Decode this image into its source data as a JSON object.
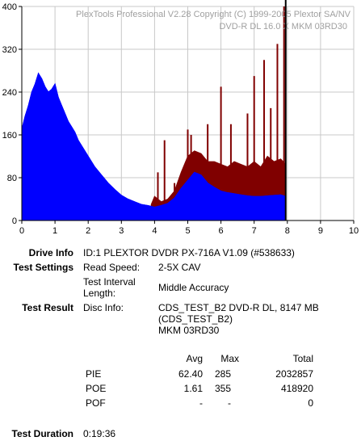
{
  "watermark": {
    "line1": "PlexTools Professional V2.28 Copyright (C) 1999-2005 Plextor SA/NV",
    "line2": "DVD-R DL   16.0 X   MKM 03RD30"
  },
  "chart_data": {
    "type": "area",
    "xlim": [
      0,
      10
    ],
    "ylim": [
      0,
      400
    ],
    "xticks": [
      "0",
      "1",
      "2",
      "3",
      "4",
      "5",
      "6",
      "7",
      "8",
      "9",
      "10"
    ],
    "yticks": [
      "0",
      "80",
      "160",
      "240",
      "320",
      "400"
    ],
    "grid": true,
    "series": [
      {
        "color": "#0000ff",
        "x": [
          0,
          0.1,
          0.2,
          0.3,
          0.4,
          0.5,
          0.6,
          0.7,
          0.8,
          0.9,
          1.0,
          1.1,
          1.2,
          1.3,
          1.4,
          1.5,
          1.6,
          1.7,
          1.8,
          1.9,
          2.0,
          2.2,
          2.4,
          2.6,
          2.8,
          3.0,
          3.2,
          3.4,
          3.6,
          3.8,
          4.0,
          4.2,
          4.4,
          4.6,
          4.8,
          5.0,
          5.2,
          5.4,
          5.6,
          5.8,
          6.0,
          6.2,
          6.4,
          6.6,
          6.8,
          7.0,
          7.2,
          7.4,
          7.6,
          7.8,
          7.95
        ],
        "y": [
          170,
          195,
          215,
          240,
          255,
          275,
          265,
          250,
          240,
          245,
          255,
          230,
          215,
          200,
          185,
          175,
          165,
          150,
          140,
          130,
          120,
          100,
          85,
          70,
          58,
          47,
          40,
          35,
          30,
          28,
          25,
          28,
          32,
          42,
          60,
          75,
          90,
          85,
          70,
          62,
          55,
          52,
          50,
          48,
          46,
          45,
          45,
          46,
          47,
          48,
          45
        ]
      },
      {
        "color": "#800000",
        "x": [
          3.9,
          4.0,
          4.2,
          4.4,
          4.6,
          4.8,
          5.0,
          5.2,
          5.4,
          5.6,
          5.8,
          6.0,
          6.2,
          6.4,
          6.6,
          6.8,
          7.0,
          7.2,
          7.4,
          7.6,
          7.8,
          7.95
        ],
        "y": [
          30,
          45,
          35,
          40,
          55,
          90,
          120,
          130,
          125,
          110,
          110,
          105,
          100,
          110,
          105,
          100,
          110,
          100,
          120,
          110,
          115,
          105
        ],
        "spikes": [
          [
            4.1,
            90
          ],
          [
            4.3,
            150
          ],
          [
            4.6,
            70
          ],
          [
            5.0,
            170
          ],
          [
            5.1,
            160
          ],
          [
            5.6,
            180
          ],
          [
            6.0,
            250
          ],
          [
            6.3,
            180
          ],
          [
            6.8,
            200
          ],
          [
            7.0,
            270
          ],
          [
            7.3,
            300
          ],
          [
            7.5,
            210
          ],
          [
            7.7,
            330
          ],
          [
            7.9,
            400
          ]
        ]
      }
    ]
  },
  "drive_info": {
    "label": "Drive Info",
    "value": "ID:1 PLEXTOR DVDR PX-716A V1.09 (#538633)"
  },
  "test_settings": {
    "label": "Test Settings",
    "read_speed_label": "Read Speed:",
    "read_speed_value": "2-5X CAV",
    "interval_label_1": "Test Interval",
    "interval_label_2": "Length:",
    "interval_value": "Middle Accuracy"
  },
  "test_result": {
    "label": "Test Result",
    "disc_info_label": "Disc Info:",
    "disc_info_1": "CDS_TEST_B2 DVD-R DL, 8147 MB",
    "disc_info_2": "(CDS_TEST_B2)",
    "disc_info_3": "MKM 03RD30"
  },
  "stats": {
    "headers": {
      "avg": "Avg",
      "max": "Max",
      "total": "Total"
    },
    "rows": [
      {
        "name": "PIE",
        "avg": "62.40",
        "max": "285",
        "total": "2032857"
      },
      {
        "name": "POE",
        "avg": "1.61",
        "max": "355",
        "total": "418920"
      },
      {
        "name": "POF",
        "avg": "-",
        "max": "-",
        "total": "0"
      }
    ]
  },
  "duration": {
    "label": "Test Duration",
    "value": "0:19:36"
  }
}
